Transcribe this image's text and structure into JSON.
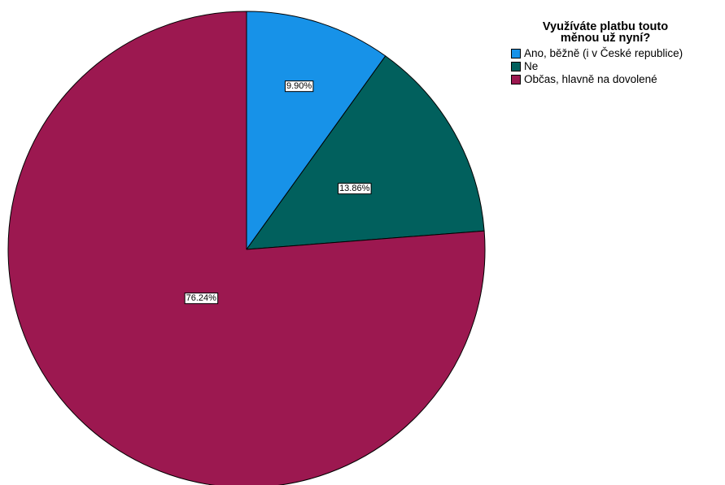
{
  "chart_data": {
    "type": "pie",
    "title": "",
    "categories": [
      "Ano, běžně (i v České republice)",
      "Ne",
      "Občas, hlavně na dovolené"
    ],
    "values": [
      9.9,
      13.86,
      76.24
    ],
    "data_labels": [
      "9.90%",
      "13.86%",
      "76.24%"
    ],
    "colors": [
      "#1792e8",
      "#01605d",
      "#9c1850"
    ],
    "legend": {
      "title_lines": [
        "Využíváte platbu touto",
        "měnou už nyní?"
      ],
      "placement": "top-right"
    },
    "start_angle": "12 o'clock",
    "direction": "clockwise"
  }
}
